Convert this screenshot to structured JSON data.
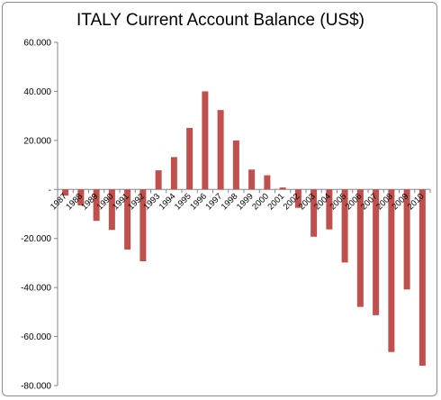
{
  "chart_data": {
    "type": "bar",
    "title": "ITALY Current Account Balance (US$)",
    "xlabel": "",
    "ylabel": "",
    "categories": [
      "1987",
      "1988",
      "1989",
      "1990",
      "1991",
      "1992",
      "1993",
      "1994",
      "1995",
      "1996",
      "1997",
      "1998",
      "1999",
      "2000",
      "2001",
      "2002",
      "2003",
      "2004",
      "2005",
      "2006",
      "2007",
      "2008",
      "2009",
      "2010"
    ],
    "series": [
      {
        "values": [
          -2500,
          -6500,
          -12800,
          -16500,
          -24500,
          -29300,
          7800,
          13200,
          25100,
          40000,
          32400,
          20000,
          8100,
          5800,
          800,
          -7500,
          -19300,
          -16300,
          -29800,
          -47900,
          -51300,
          -66300,
          -40800,
          -71900
        ]
      }
    ],
    "ylim": [
      -80000,
      60000
    ],
    "yticks": [
      {
        "value": 60000,
        "label": "60.000"
      },
      {
        "value": 40000,
        "label": "40.000"
      },
      {
        "value": 20000,
        "label": "20.000"
      },
      {
        "value": 0,
        "label": "-"
      },
      {
        "value": -20000,
        "label": "-20.000"
      },
      {
        "value": -40000,
        "label": "-40.000"
      },
      {
        "value": -60000,
        "label": "-60.000"
      },
      {
        "value": -80000,
        "label": "-80.000"
      }
    ],
    "grid": false,
    "legend": "none",
    "colors": {
      "bar": "#c0504d",
      "axis": "#868686",
      "text": "#000000"
    }
  }
}
